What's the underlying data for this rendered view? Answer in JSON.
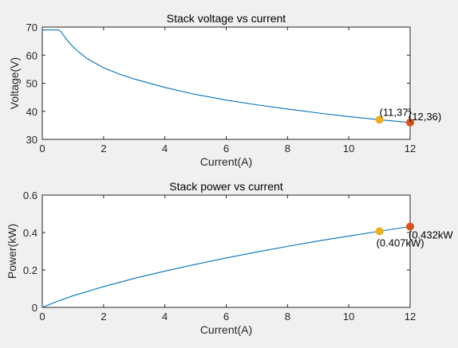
{
  "chart_data": [
    {
      "type": "line",
      "title": "Stack voltage vs current",
      "xlabel": "Current(A)",
      "ylabel": "Voltage(V)",
      "xlim": [
        0,
        12
      ],
      "ylim": [
        30,
        70
      ],
      "xticks": [
        0,
        2,
        4,
        6,
        8,
        10,
        12
      ],
      "yticks": [
        30,
        40,
        50,
        60,
        70
      ],
      "xtick_labels": [
        "0",
        "2",
        "4",
        "6",
        "8",
        "10",
        "12"
      ],
      "ytick_labels": [
        "30",
        "40",
        "50",
        "60",
        "70"
      ],
      "grid": true,
      "series": [
        {
          "color": "#0072bd",
          "x": [
            0,
            0.5,
            0.6,
            0.7,
            0.8,
            1.0,
            1.2,
            1.5,
            2,
            2.5,
            3,
            4,
            5,
            6,
            7,
            8,
            9,
            10,
            11,
            12
          ],
          "y": [
            69,
            69,
            68.5,
            67,
            65.5,
            63,
            61,
            58.5,
            55.5,
            53.3,
            51.5,
            48.5,
            46,
            44,
            42.3,
            40.8,
            39.4,
            38.1,
            37,
            36
          ]
        }
      ],
      "markers": [
        {
          "x": 11,
          "y": 37,
          "color": "#edb120",
          "label": "(11,37)"
        },
        {
          "x": 12,
          "y": 36,
          "color": "#d95319",
          "label": "(12,36)"
        }
      ]
    },
    {
      "type": "line",
      "title": "Stack power vs current",
      "xlabel": "Current(A)",
      "ylabel": "Power(kW)",
      "xlim": [
        0,
        12
      ],
      "ylim": [
        0,
        0.6
      ],
      "xticks": [
        0,
        2,
        4,
        6,
        8,
        10,
        12
      ],
      "yticks": [
        0,
        0.2,
        0.4,
        0.6
      ],
      "xtick_labels": [
        "0",
        "2",
        "4",
        "6",
        "8",
        "10",
        "12"
      ],
      "ytick_labels": [
        "0",
        "0.2",
        "0.4",
        "0.6"
      ],
      "grid": true,
      "series": [
        {
          "color": "#0072bd",
          "x": [
            0,
            0.5,
            1,
            2,
            3,
            4,
            5,
            6,
            7,
            8,
            9,
            10,
            11,
            12
          ],
          "y": [
            0,
            0.033,
            0.062,
            0.111,
            0.155,
            0.194,
            0.23,
            0.264,
            0.296,
            0.326,
            0.355,
            0.381,
            0.407,
            0.432
          ]
        }
      ],
      "markers": [
        {
          "x": 11,
          "y": 0.407,
          "color": "#edb120",
          "label": "(0.407kW)"
        },
        {
          "x": 12,
          "y": 0.432,
          "color": "#d95319",
          "label": "(0.432kW"
        }
      ]
    }
  ]
}
